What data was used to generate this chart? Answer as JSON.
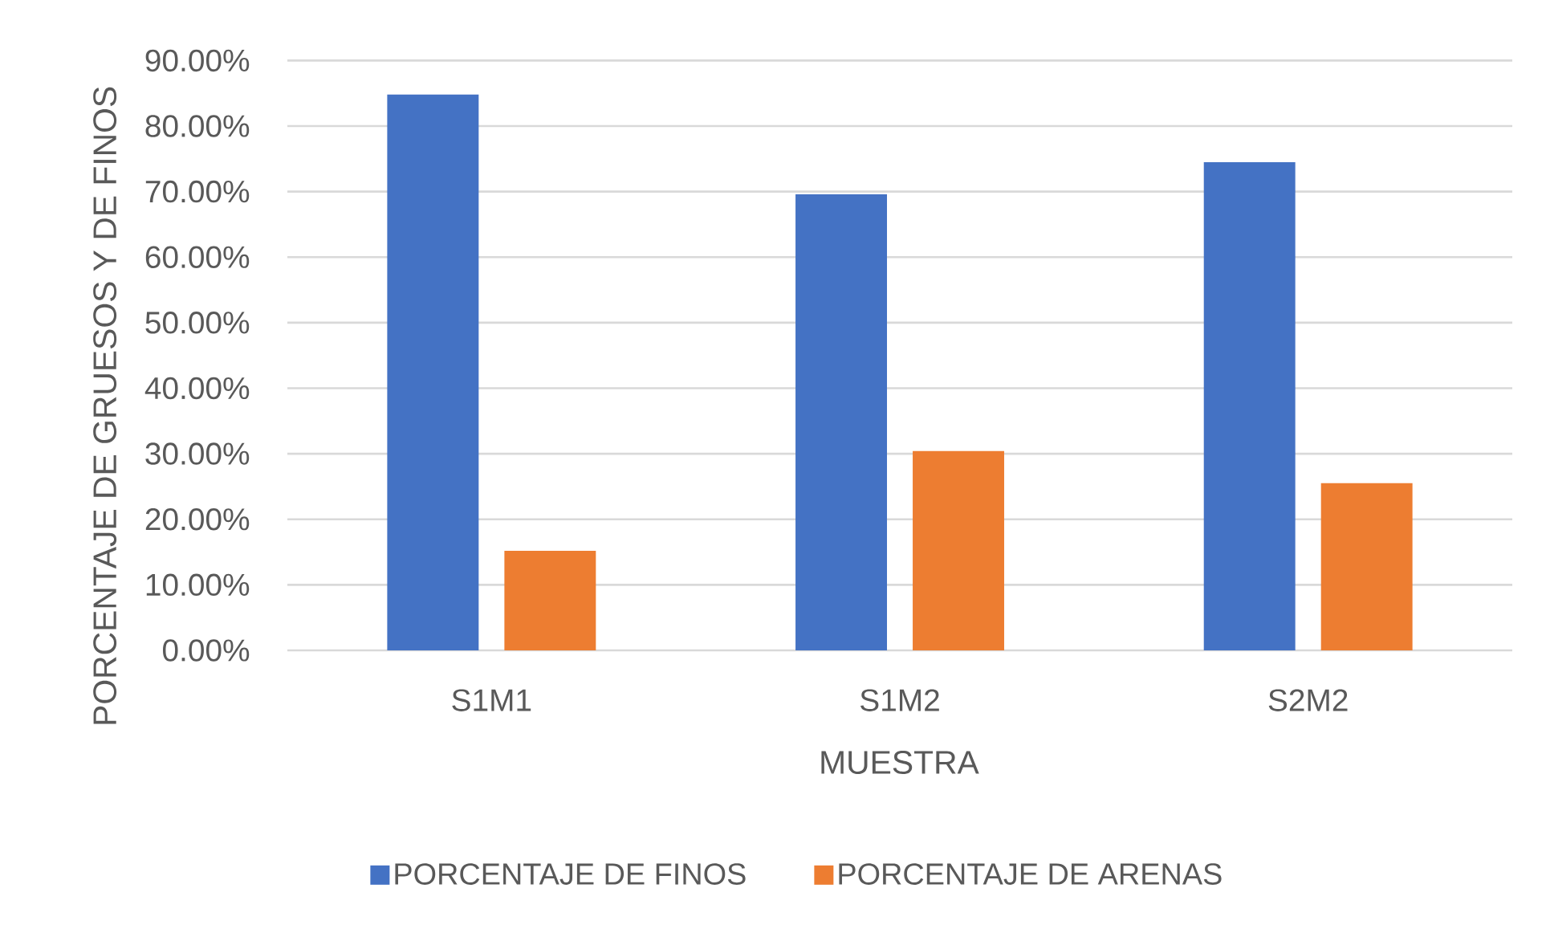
{
  "chart_data": {
    "type": "bar",
    "xlabel": "MUESTRA",
    "ylabel": "PORCENTAJE DE GRUESOS Y DE FINOS",
    "categories": [
      "S1M1",
      "S1M2",
      "S2M2"
    ],
    "series": [
      {
        "name": "PORCENTAJE DE FINOS",
        "color": "#4472c4",
        "values": [
          84.8,
          69.6,
          74.5
        ]
      },
      {
        "name": "PORCENTAJE DE ARENAS",
        "color": "#ed7d31",
        "values": [
          15.2,
          30.4,
          25.5
        ]
      }
    ],
    "ylim": [
      0,
      90
    ],
    "yticks": [
      {
        "value": 0,
        "label": "0.00%"
      },
      {
        "value": 10,
        "label": "10.00%"
      },
      {
        "value": 20,
        "label": "20.00%"
      },
      {
        "value": 30,
        "label": "30.00%"
      },
      {
        "value": 40,
        "label": "40.00%"
      },
      {
        "value": 50,
        "label": "50.00%"
      },
      {
        "value": 60,
        "label": "60.00%"
      },
      {
        "value": 70,
        "label": "70.00%"
      },
      {
        "value": 80,
        "label": "80.00%"
      },
      {
        "value": 90,
        "label": "90.00%"
      }
    ],
    "grid": "y",
    "legend": "bottom"
  }
}
